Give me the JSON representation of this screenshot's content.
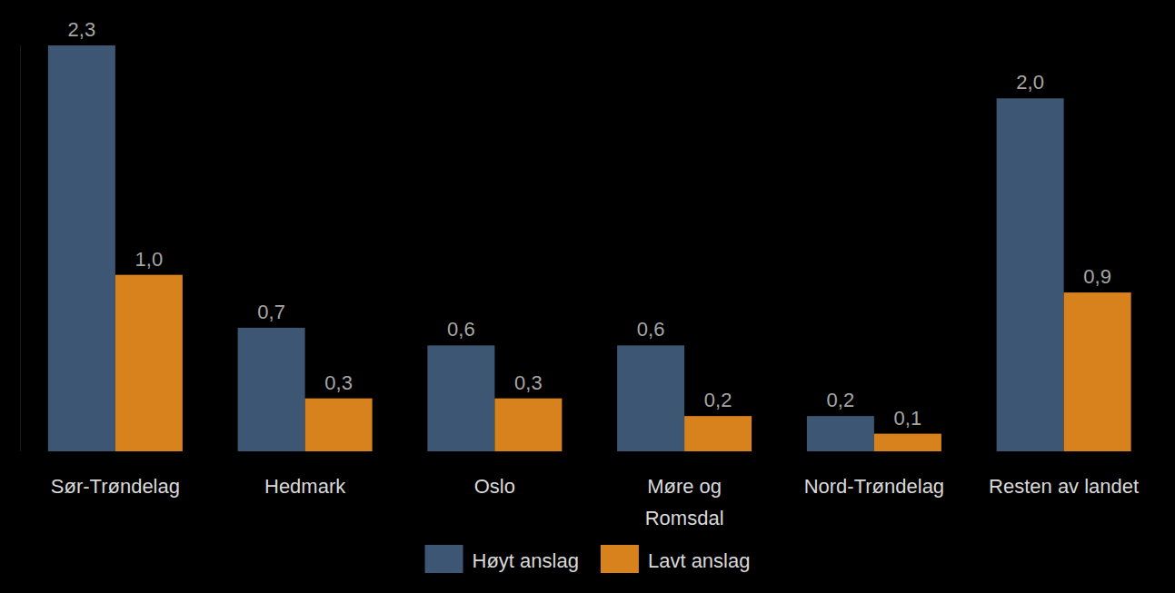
{
  "chart_data": {
    "type": "bar",
    "categories": [
      "Sør-Trøndelag",
      "Hedmark",
      "Oslo",
      "Møre og\nRomsdal",
      "Nord-Trøndelag",
      "Resten av landet"
    ],
    "series": [
      {
        "name": "Høyt anslag",
        "color": "#3d5674",
        "values": [
          2.3,
          0.7,
          0.6,
          0.6,
          0.2,
          2.0
        ],
        "value_labels": [
          "2,3",
          "0,7",
          "0,6",
          "0,6",
          "0,2",
          "2,0"
        ]
      },
      {
        "name": "Lavt anslag",
        "color": "#d7821c",
        "values": [
          1.0,
          0.3,
          0.3,
          0.2,
          0.1,
          0.9
        ],
        "value_labels": [
          "1,0",
          "0,3",
          "0,3",
          "0,2",
          "0,1",
          "0,9"
        ]
      }
    ],
    "ylim": [
      0,
      2.3
    ],
    "tick_labels": false,
    "data_labels": true,
    "legend": "bottom"
  }
}
